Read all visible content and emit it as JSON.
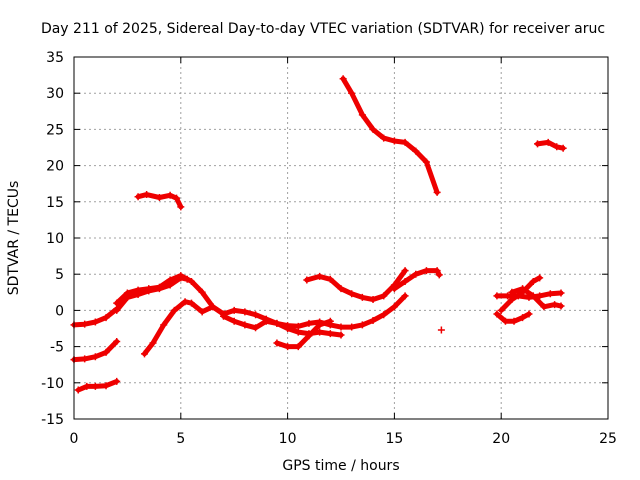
{
  "chart_data": {
    "type": "scatter",
    "title": "Day 211 of 2025, Sidereal Day-to-day VTEC variation (SDTVAR) for receiver aruc",
    "xlabel": "GPS time / hours",
    "ylabel": "SDTVAR / TECUs",
    "xlim": [
      0,
      25
    ],
    "ylim": [
      -15,
      35
    ],
    "xticks": [
      0,
      5,
      10,
      15,
      20,
      25
    ],
    "yticks": [
      -15,
      -10,
      -5,
      0,
      5,
      10,
      15,
      20,
      25,
      30,
      35
    ],
    "grid": true,
    "marker": "plus",
    "color": "#ee0000",
    "series": [
      {
        "name": "s1",
        "points": [
          [
            0,
            -2
          ],
          [
            0.5,
            -1.9
          ],
          [
            1,
            -1.6
          ],
          [
            1.5,
            -1
          ],
          [
            2,
            0.2
          ]
        ]
      },
      {
        "name": "s2",
        "points": [
          [
            0,
            -6.8
          ],
          [
            0.5,
            -6.7
          ],
          [
            1,
            -6.4
          ],
          [
            1.5,
            -5.8
          ],
          [
            2,
            -4.3
          ]
        ]
      },
      {
        "name": "s3",
        "points": [
          [
            0.2,
            -11
          ],
          [
            0.6,
            -10.5
          ],
          [
            1,
            -10.5
          ],
          [
            1.5,
            -10.4
          ],
          [
            2,
            -9.8
          ]
        ]
      },
      {
        "name": "s4",
        "points": [
          [
            2,
            1
          ],
          [
            2.5,
            2.4
          ],
          [
            3,
            2.8
          ],
          [
            3.5,
            3
          ],
          [
            4,
            3.2
          ],
          [
            4.5,
            4.2
          ],
          [
            5,
            4.8
          ],
          [
            5.5,
            4
          ],
          [
            6,
            2.5
          ],
          [
            6.5,
            0.5
          ],
          [
            7,
            -0.5
          ]
        ]
      },
      {
        "name": "s5",
        "points": [
          [
            2,
            0
          ],
          [
            2.5,
            1.8
          ],
          [
            3,
            2.2
          ],
          [
            3.5,
            2.7
          ],
          [
            4,
            3
          ],
          [
            4.5,
            3.5
          ],
          [
            5,
            4.5
          ],
          [
            5.3,
            4.3
          ]
        ]
      },
      {
        "name": "s6",
        "points": [
          [
            3.3,
            -6
          ],
          [
            3.7,
            -4.5
          ],
          [
            4.2,
            -2
          ],
          [
            4.7,
            0
          ],
          [
            5.2,
            1.2
          ],
          [
            5.5,
            1
          ],
          [
            6,
            -0.2
          ],
          [
            6.5,
            0.5
          ],
          [
            7,
            -0.5
          ]
        ]
      },
      {
        "name": "s7",
        "points": [
          [
            3,
            15.7
          ],
          [
            3.4,
            16
          ],
          [
            4,
            15.6
          ],
          [
            4.5,
            15.9
          ],
          [
            4.8,
            15.5
          ],
          [
            5,
            14.3
          ]
        ]
      },
      {
        "name": "s8",
        "points": [
          [
            7,
            -0.5
          ],
          [
            7.5,
            0
          ],
          [
            8,
            -0.2
          ],
          [
            8.5,
            -0.6
          ],
          [
            9,
            -1.2
          ],
          [
            9.5,
            -1.8
          ],
          [
            10,
            -2.1
          ],
          [
            10.5,
            -2.2
          ],
          [
            11,
            -1.8
          ],
          [
            11.5,
            -1.6
          ],
          [
            12,
            -2
          ],
          [
            12.5,
            -2.3
          ],
          [
            13,
            -2.3
          ],
          [
            13.5,
            -2
          ],
          [
            14,
            -1.4
          ],
          [
            14.5,
            -0.6
          ],
          [
            15,
            0.5
          ],
          [
            15.5,
            2
          ]
        ]
      },
      {
        "name": "s9",
        "points": [
          [
            7,
            -0.8
          ],
          [
            7.5,
            -1.5
          ],
          [
            8,
            -2
          ],
          [
            8.5,
            -2.4
          ],
          [
            9,
            -1.5
          ],
          [
            9.5,
            -1.8
          ],
          [
            10,
            -2.5
          ],
          [
            10.5,
            -3
          ],
          [
            11,
            -3.2
          ],
          [
            11.5,
            -3
          ],
          [
            12,
            -3.2
          ],
          [
            12.5,
            -3.4
          ]
        ]
      },
      {
        "name": "s10",
        "points": [
          [
            9.5,
            -4.5
          ],
          [
            10,
            -5
          ],
          [
            10.5,
            -5
          ],
          [
            11,
            -3.5
          ],
          [
            11.5,
            -2
          ],
          [
            12,
            -1.5
          ]
        ]
      },
      {
        "name": "s11",
        "points": [
          [
            10.9,
            4.2
          ],
          [
            11.5,
            4.7
          ],
          [
            12,
            4.3
          ],
          [
            12.5,
            3
          ],
          [
            13,
            2.3
          ],
          [
            13.5,
            1.8
          ],
          [
            14,
            1.5
          ],
          [
            14.5,
            2
          ],
          [
            15,
            3.5
          ],
          [
            15.5,
            5.5
          ]
        ]
      },
      {
        "name": "s12",
        "points": [
          [
            12.6,
            32
          ],
          [
            13,
            30
          ],
          [
            13.5,
            27
          ],
          [
            14,
            25
          ],
          [
            14.5,
            23.8
          ],
          [
            15,
            23.4
          ],
          [
            15.5,
            23.2
          ],
          [
            16,
            22
          ],
          [
            16.5,
            20.5
          ],
          [
            17,
            16.3
          ]
        ]
      },
      {
        "name": "s13",
        "points": [
          [
            15,
            3
          ],
          [
            15.5,
            4
          ],
          [
            16,
            5
          ],
          [
            16.5,
            5.5
          ],
          [
            17,
            5.5
          ],
          [
            17.1,
            4.9
          ]
        ]
      },
      {
        "name": "s14",
        "points": [
          [
            20,
            0
          ],
          [
            20.5,
            1.5
          ],
          [
            21,
            2.5
          ],
          [
            21.5,
            4
          ],
          [
            21.8,
            4.5
          ]
        ]
      },
      {
        "name": "s15",
        "points": [
          [
            19.8,
            2
          ],
          [
            20.3,
            2
          ],
          [
            20.8,
            2
          ],
          [
            21.3,
            1.8
          ],
          [
            21.8,
            2
          ],
          [
            22.3,
            2.3
          ],
          [
            22.8,
            2.4
          ]
        ]
      },
      {
        "name": "s16",
        "points": [
          [
            19.8,
            -0.5
          ],
          [
            20.2,
            -1.5
          ],
          [
            20.6,
            -1.5
          ],
          [
            21,
            -1
          ],
          [
            21.3,
            -0.5
          ]
        ]
      },
      {
        "name": "s17",
        "points": [
          [
            20.5,
            2.5
          ],
          [
            21,
            3
          ],
          [
            21.5,
            2
          ],
          [
            22,
            0.5
          ],
          [
            22.5,
            0.8
          ],
          [
            22.8,
            0.6
          ]
        ]
      },
      {
        "name": "s18",
        "points": [
          [
            21.7,
            23
          ],
          [
            22.2,
            23.2
          ],
          [
            22.6,
            22.6
          ],
          [
            22.9,
            22.4
          ]
        ]
      },
      {
        "name": "s19",
        "points": [
          [
            17.2,
            -2.7
          ]
        ]
      }
    ]
  }
}
